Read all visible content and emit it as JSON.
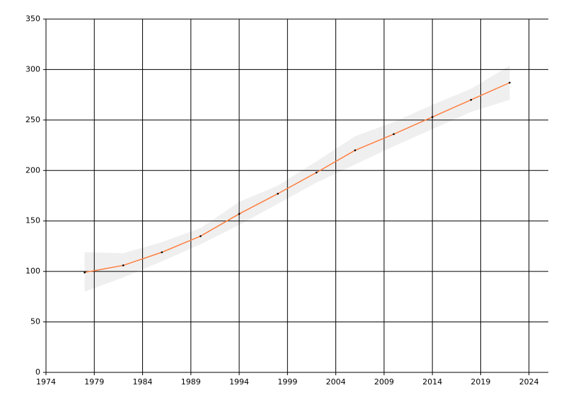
{
  "chart_data": {
    "type": "line",
    "x": [
      1978,
      1982,
      1986,
      1990,
      1994,
      1998,
      2002,
      2006,
      2010,
      2014,
      2018,
      2022
    ],
    "values": [
      99,
      106,
      119,
      135,
      157,
      177,
      198,
      220,
      236,
      253,
      270,
      287
    ],
    "lower": [
      80,
      94,
      110,
      127,
      146,
      167,
      188,
      206,
      224,
      241,
      258,
      270
    ],
    "upper": [
      119,
      118,
      129,
      143,
      169,
      185,
      209,
      234,
      248,
      265,
      281,
      304
    ],
    "color": "#ff7f3f",
    "band_color": "#efefef",
    "marker_color": "#000000",
    "xlim": [
      1974,
      2026
    ],
    "xticks": [
      1974,
      1979,
      1984,
      1989,
      1994,
      1999,
      2004,
      2009,
      2014,
      2019,
      2024
    ],
    "ylim": [
      0,
      350
    ],
    "yticks": [
      0,
      50,
      100,
      150,
      200,
      250,
      300,
      350
    ],
    "grid": true
  }
}
